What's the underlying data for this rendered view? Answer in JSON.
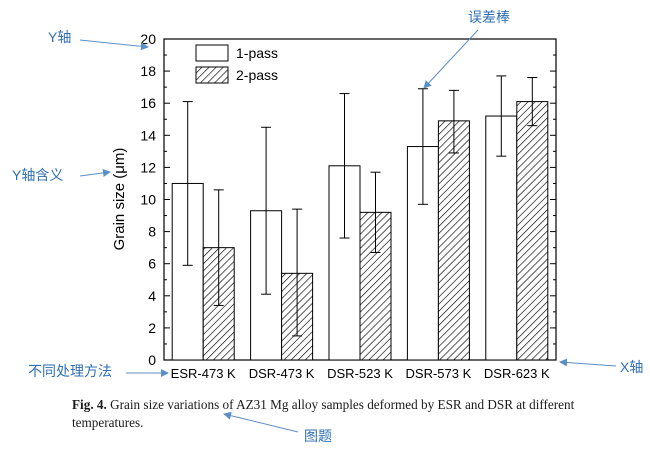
{
  "chart_data": {
    "type": "bar",
    "title": "",
    "xlabel": "",
    "ylabel": "Grain size (μm)",
    "ylim": [
      0,
      20
    ],
    "yticks": [
      "0",
      "2",
      "4",
      "6",
      "8",
      "10",
      "12",
      "14",
      "16",
      "18",
      "20"
    ],
    "categories": [
      "ESR-473 K",
      "DSR-473 K",
      "DSR-523 K",
      "DSR-573 K",
      "DSR-623 K"
    ],
    "series": [
      {
        "name": "1-pass",
        "fill": "white",
        "values": [
          11.0,
          9.3,
          12.1,
          13.3,
          15.2
        ],
        "err_low": [
          5.9,
          4.1,
          7.6,
          9.7,
          12.7
        ],
        "err_high": [
          16.1,
          14.5,
          16.6,
          16.9,
          17.7
        ]
      },
      {
        "name": "2-pass",
        "fill": "hatched",
        "values": [
          7.0,
          5.4,
          9.2,
          14.9,
          16.1
        ],
        "err_low": [
          3.4,
          1.5,
          6.7,
          12.9,
          14.6
        ],
        "err_high": [
          10.6,
          9.4,
          11.7,
          16.8,
          17.6
        ]
      }
    ],
    "legend_position": "top-left",
    "annotations": {
      "error_bar": "误差棒",
      "y_axis": "Y轴",
      "y_meaning": "Y轴含义",
      "x_axis": "X轴",
      "methods": "不同处理方法",
      "figure_title": "图题"
    }
  },
  "caption": {
    "label": "Fig. 4.",
    "text": "Grain size variations of AZ31 Mg alloy samples deformed by ESR and DSR at different temperatures."
  },
  "colors": {
    "annotation": "#2f6fb5",
    "axis": "#000000"
  }
}
